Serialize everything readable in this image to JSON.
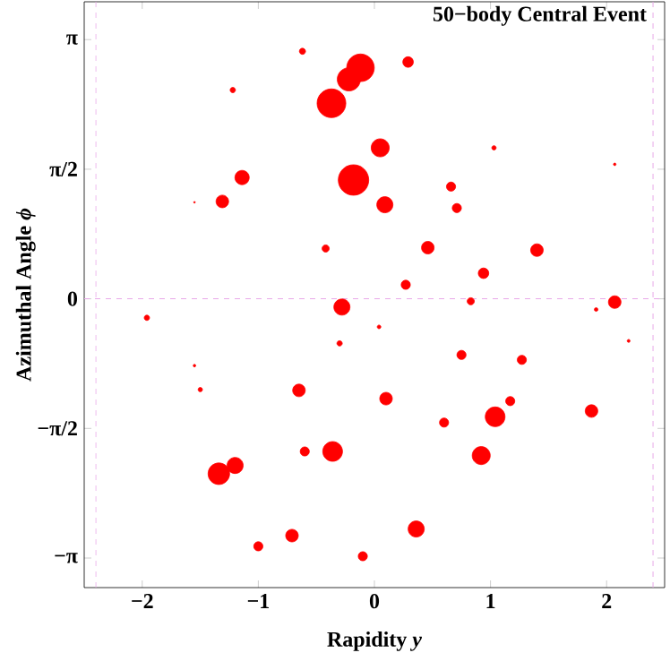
{
  "chart_data": {
    "type": "bubble",
    "title": "50−body Central Event",
    "xlabel": "Rapidity *y*",
    "ylabel": "Azimuthal Angle *ϕ*",
    "xlim": [
      -2.5,
      2.5
    ],
    "ylim": [
      -3.5,
      3.6
    ],
    "xticks": [
      {
        "value": -2,
        "label": "−2"
      },
      {
        "value": -1,
        "label": "−1"
      },
      0,
      1,
      2
    ],
    "yticks": [
      {
        "value": -3.14159,
        "label": "−π"
      },
      {
        "value": -1.5708,
        "label": "−π/2"
      },
      0,
      {
        "value": 1.5708,
        "label": "π/2"
      },
      {
        "value": 3.14159,
        "label": "π"
      }
    ],
    "marker": "circle",
    "grid": false,
    "ref_lines": [
      {
        "axis": "y",
        "value": 0,
        "color": "#e8a8e8",
        "line_style": "dashed"
      },
      {
        "axis": "x",
        "value": -2.4,
        "color": "#e8a8e8",
        "line_style": "dashed"
      },
      {
        "axis": "x",
        "value": 2.4,
        "color": "#e8a8e8",
        "line_style": "dashed"
      }
    ],
    "series": [
      {
        "color": "#ff0000",
        "x": [
          -0.62,
          -1.22,
          -0.12,
          -0.22,
          -0.37,
          -1.14,
          -0.18,
          -1.31,
          -1.55,
          -0.42,
          -0.28,
          -1.96,
          0.29,
          0.05,
          1.03,
          2.07,
          0.66,
          0.09,
          0.71,
          0.46,
          1.4,
          0.94,
          0.27,
          0.83,
          2.07,
          1.91,
          2.19,
          -0.3,
          -1.55,
          -1.5,
          -0.65,
          -0.6,
          -0.36,
          -1.2,
          -1.34,
          -0.71,
          -1.0,
          -0.1,
          0.04,
          0.75,
          1.27,
          0.1,
          1.17,
          0.6,
          1.04,
          1.87,
          0.92,
          0.36
        ],
        "values": [
          3.0,
          2.53,
          2.8,
          2.66,
          2.37,
          1.47,
          1.44,
          1.18,
          1.17,
          0.61,
          -0.1,
          -0.23,
          2.87,
          1.83,
          1.83,
          1.63,
          1.36,
          1.14,
          1.1,
          0.62,
          0.59,
          0.31,
          0.17,
          -0.03,
          -0.04,
          -0.13,
          -0.51,
          -0.54,
          -0.81,
          -1.1,
          -1.11,
          -1.85,
          -1.85,
          -2.02,
          -2.12,
          -2.87,
          -3.0,
          -3.12,
          -0.34,
          -0.68,
          -0.74,
          -1.21,
          -1.24,
          -1.5,
          -1.43,
          -1.36,
          -1.9,
          -2.79
        ],
        "sizes": [
          0.04,
          0.03,
          0.82,
          0.58,
          0.89,
          0.22,
          1,
          0.17,
          0.003,
          0.055,
          0.28,
          0.03,
          0.12,
          0.35,
          0.02,
          0.007,
          0.09,
          0.28,
          0.09,
          0.17,
          0.17,
          0.12,
          0.09,
          0.055,
          0.17,
          0.014,
          0.009,
          0.03,
          0.007,
          0.02,
          0.17,
          0.09,
          0.42,
          0.28,
          0.5,
          0.17,
          0.09,
          0.09,
          0.014,
          0.09,
          0.09,
          0.17,
          0.09,
          0.09,
          0.42,
          0.17,
          0.35,
          0.28
        ]
      }
    ]
  }
}
